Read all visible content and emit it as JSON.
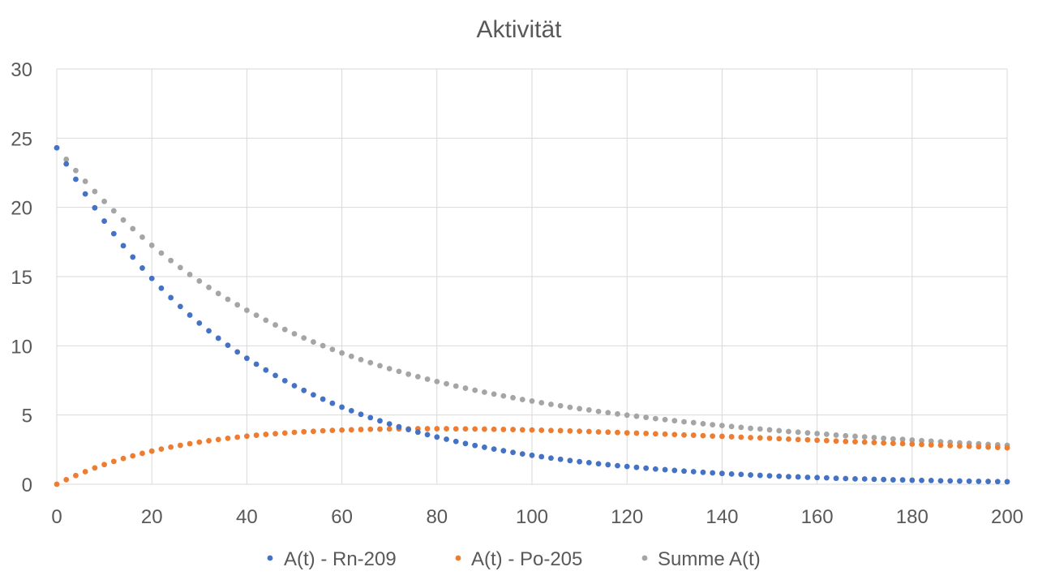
{
  "chart_data": {
    "type": "scatter",
    "title": "Aktivität",
    "xlabel": "",
    "ylabel": "",
    "xlim": [
      0,
      200
    ],
    "ylim": [
      0,
      30
    ],
    "x_ticks": [
      0,
      20,
      40,
      60,
      80,
      100,
      120,
      140,
      160,
      180,
      200
    ],
    "y_ticks": [
      0,
      5,
      10,
      15,
      20,
      25,
      30
    ],
    "grid": true,
    "legend_position": "bottom",
    "x": [
      0,
      2,
      4,
      6,
      8,
      10,
      12,
      14,
      16,
      18,
      20,
      22,
      24,
      26,
      28,
      30,
      32,
      34,
      36,
      38,
      40,
      42,
      44,
      46,
      48,
      50,
      52,
      54,
      56,
      58,
      60,
      62,
      64,
      66,
      68,
      70,
      72,
      74,
      76,
      78,
      80,
      82,
      84,
      86,
      88,
      90,
      92,
      94,
      96,
      98,
      100,
      102,
      104,
      106,
      108,
      110,
      112,
      114,
      116,
      118,
      120,
      122,
      124,
      126,
      128,
      130,
      132,
      134,
      136,
      138,
      140,
      142,
      144,
      146,
      148,
      150,
      152,
      154,
      156,
      158,
      160,
      162,
      164,
      166,
      168,
      170,
      172,
      174,
      176,
      178,
      180,
      182,
      184,
      186,
      188,
      190,
      192,
      194,
      196,
      198,
      200
    ],
    "series": [
      {
        "name": "A(t) - Rn-209",
        "color": "#4472c4",
        "values": [
          24.3,
          23.14,
          22.03,
          20.97,
          19.97,
          19.01,
          18.1,
          17.23,
          16.41,
          15.62,
          14.87,
          14.16,
          13.48,
          12.84,
          12.22,
          11.64,
          11.08,
          10.55,
          10.04,
          9.56,
          9.1,
          8.67,
          8.25,
          7.86,
          7.48,
          7.12,
          6.78,
          6.46,
          6.15,
          5.85,
          5.57,
          5.31,
          5.05,
          4.81,
          4.58,
          4.36,
          4.15,
          3.95,
          3.76,
          3.58,
          3.41,
          3.25,
          3.09,
          2.94,
          2.8,
          2.67,
          2.54,
          2.42,
          2.3,
          2.19,
          2.09,
          1.99,
          1.89,
          1.8,
          1.71,
          1.63,
          1.56,
          1.48,
          1.41,
          1.34,
          1.28,
          1.22,
          1.16,
          1.1,
          1.05,
          1.0,
          0.95,
          0.91,
          0.86,
          0.82,
          0.78,
          0.74,
          0.71,
          0.67,
          0.64,
          0.61,
          0.58,
          0.55,
          0.53,
          0.5,
          0.48,
          0.46,
          0.43,
          0.41,
          0.39,
          0.38,
          0.36,
          0.34,
          0.32,
          0.31,
          0.29,
          0.28,
          0.27,
          0.25,
          0.24,
          0.23,
          0.22,
          0.21,
          0.2,
          0.19,
          0.18
        ]
      },
      {
        "name": "A(t) - Po-205",
        "color": "#ed7d31",
        "values": [
          0,
          0.33,
          0.63,
          0.91,
          1.18,
          1.42,
          1.65,
          1.86,
          2.05,
          2.23,
          2.39,
          2.54,
          2.68,
          2.81,
          2.93,
          3.04,
          3.14,
          3.23,
          3.32,
          3.4,
          3.47,
          3.54,
          3.6,
          3.65,
          3.7,
          3.75,
          3.79,
          3.82,
          3.86,
          3.89,
          3.91,
          3.93,
          3.95,
          3.97,
          3.98,
          3.99,
          4.0,
          4.0,
          4.01,
          4.01,
          4.01,
          4.01,
          4.0,
          4.0,
          3.99,
          3.98,
          3.97,
          3.96,
          3.95,
          3.93,
          3.92,
          3.9,
          3.88,
          3.87,
          3.85,
          3.83,
          3.81,
          3.78,
          3.76,
          3.74,
          3.71,
          3.69,
          3.67,
          3.64,
          3.62,
          3.59,
          3.56,
          3.54,
          3.51,
          3.48,
          3.46,
          3.43,
          3.4,
          3.37,
          3.35,
          3.32,
          3.29,
          3.26,
          3.23,
          3.21,
          3.18,
          3.15,
          3.12,
          3.09,
          3.07,
          3.04,
          3.01,
          2.98,
          2.95,
          2.93,
          2.9,
          2.87,
          2.84,
          2.82,
          2.79,
          2.76,
          2.74,
          2.71,
          2.68,
          2.66,
          2.63
        ]
      },
      {
        "name": "Summe A(t)",
        "color": "#a5a5a5",
        "values": [
          24.3,
          23.47,
          22.66,
          21.88,
          21.15,
          20.43,
          19.75,
          19.09,
          18.46,
          17.85,
          17.26,
          16.7,
          16.16,
          15.65,
          15.15,
          14.68,
          14.22,
          13.78,
          13.36,
          12.96,
          12.57,
          12.21,
          11.85,
          11.51,
          11.18,
          10.87,
          10.57,
          10.28,
          10.01,
          9.74,
          9.48,
          9.24,
          9.0,
          8.78,
          8.56,
          8.35,
          8.15,
          7.95,
          7.77,
          7.59,
          7.42,
          7.26,
          7.09,
          6.94,
          6.79,
          6.65,
          6.51,
          6.38,
          6.25,
          6.12,
          6.01,
          5.89,
          5.77,
          5.67,
          5.56,
          5.46,
          5.37,
          5.26,
          5.17,
          5.08,
          4.99,
          4.91,
          4.83,
          4.74,
          4.67,
          4.59,
          4.51,
          4.45,
          4.37,
          4.3,
          4.24,
          4.17,
          4.11,
          4.04,
          3.99,
          3.93,
          3.87,
          3.81,
          3.76,
          3.71,
          3.66,
          3.61,
          3.55,
          3.5,
          3.46,
          3.42,
          3.37,
          3.32,
          3.27,
          3.24,
          3.19,
          3.15,
          3.11,
          3.07,
          3.03,
          2.99,
          2.96,
          2.92,
          2.88,
          2.85,
          2.81
        ]
      }
    ]
  }
}
